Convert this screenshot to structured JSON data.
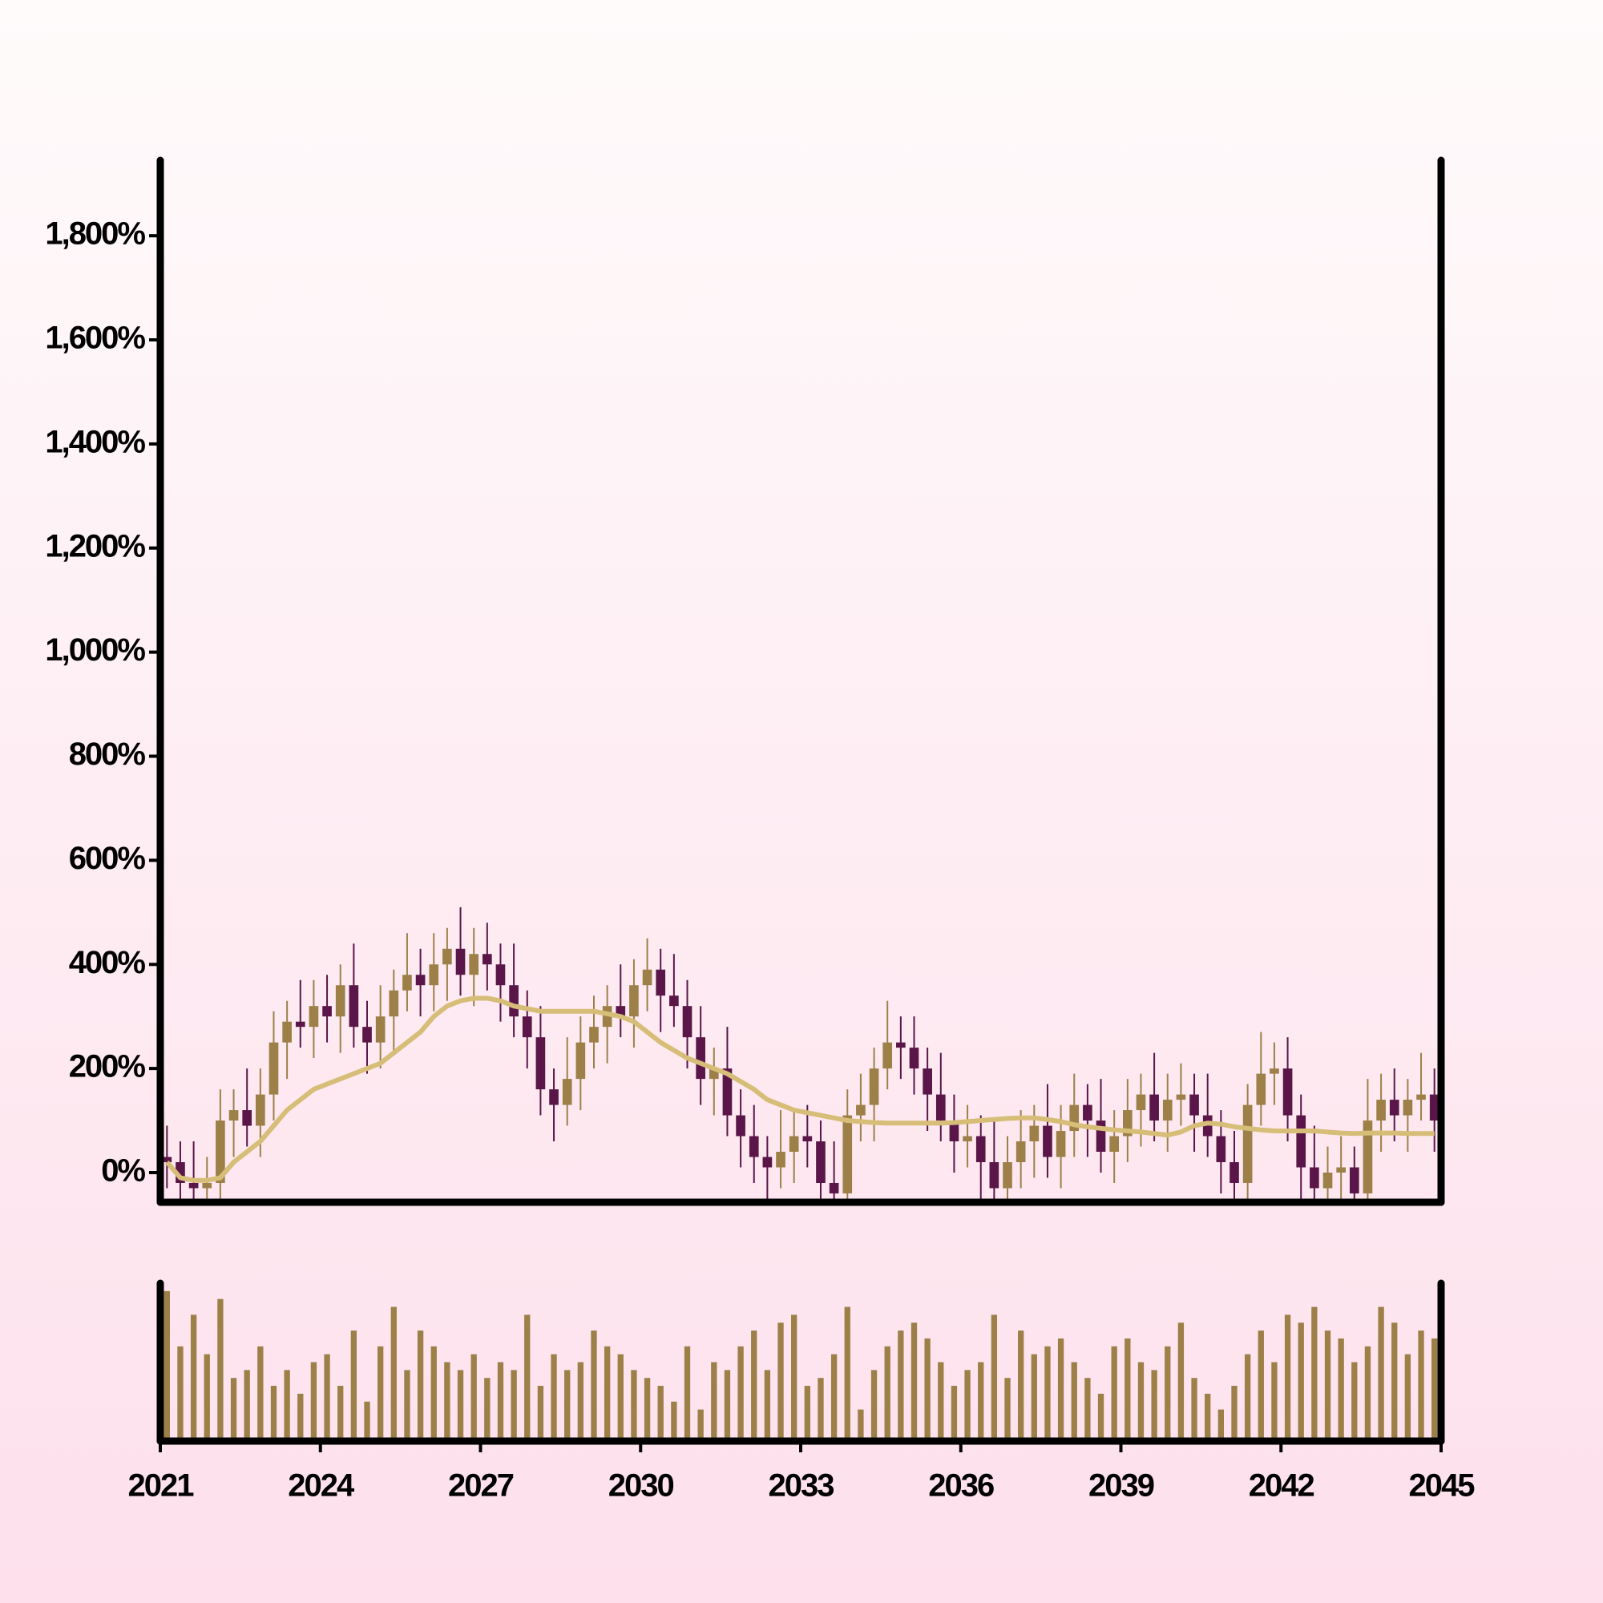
{
  "chart_data": {
    "type": "candlestick",
    "x": [
      2021,
      2021.25,
      2021.5,
      2021.75,
      2022,
      2022.25,
      2022.5,
      2022.75,
      2023,
      2023.25,
      2023.5,
      2023.75,
      2024,
      2024.25,
      2024.5,
      2024.75,
      2025,
      2025.25,
      2025.5,
      2025.75,
      2026,
      2026.25,
      2026.5,
      2026.75,
      2027,
      2027.25,
      2027.5,
      2027.75,
      2028,
      2028.25,
      2028.5,
      2028.75,
      2029,
      2029.25,
      2029.5,
      2029.75,
      2030,
      2030.25,
      2030.5,
      2030.75,
      2031,
      2031.25,
      2031.5,
      2031.75,
      2032,
      2032.25,
      2032.5,
      2032.75,
      2033,
      2033.25,
      2033.5,
      2033.75,
      2034,
      2034.25,
      2034.5,
      2034.75,
      2035,
      2035.25,
      2035.5,
      2035.75,
      2036,
      2036.25,
      2036.5,
      2036.75,
      2037,
      2037.25,
      2037.5,
      2037.75,
      2038,
      2038.25,
      2038.5,
      2038.75,
      2039,
      2039.25,
      2039.5,
      2039.75,
      2040,
      2040.25,
      2040.5,
      2040.75,
      2041,
      2041.25,
      2041.5,
      2041.75,
      2042,
      2042.25,
      2042.5,
      2042.75,
      2043,
      2043.25,
      2043.5,
      2043.75,
      2044,
      2044.25,
      2044.5,
      2044.75
    ],
    "open": [
      30,
      20,
      -20,
      -30,
      -20,
      100,
      120,
      90,
      150,
      250,
      290,
      280,
      320,
      300,
      360,
      280,
      250,
      300,
      350,
      380,
      360,
      400,
      430,
      380,
      420,
      400,
      360,
      300,
      260,
      160,
      130,
      180,
      250,
      280,
      320,
      300,
      360,
      390,
      340,
      320,
      260,
      180,
      200,
      110,
      70,
      30,
      10,
      40,
      70,
      60,
      -20,
      -40,
      110,
      130,
      200,
      250,
      240,
      200,
      150,
      100,
      60,
      70,
      20,
      -30,
      20,
      60,
      90,
      30,
      80,
      130,
      100,
      40,
      70,
      120,
      150,
      100,
      140,
      150,
      110,
      70,
      20,
      -20,
      130,
      190,
      200,
      110,
      10,
      -30,
      0,
      10,
      -40,
      100,
      140,
      110,
      140,
      150
    ],
    "high": [
      90,
      60,
      60,
      30,
      160,
      160,
      200,
      200,
      310,
      330,
      370,
      370,
      380,
      400,
      440,
      330,
      360,
      390,
      460,
      430,
      460,
      470,
      510,
      470,
      480,
      440,
      440,
      350,
      320,
      200,
      260,
      300,
      340,
      360,
      400,
      410,
      450,
      430,
      420,
      370,
      320,
      240,
      280,
      160,
      130,
      70,
      120,
      120,
      130,
      100,
      60,
      160,
      190,
      240,
      330,
      300,
      300,
      240,
      230,
      150,
      130,
      110,
      100,
      70,
      120,
      130,
      170,
      130,
      190,
      170,
      180,
      120,
      180,
      190,
      230,
      190,
      210,
      190,
      190,
      120,
      80,
      170,
      270,
      250,
      260,
      150,
      90,
      50,
      70,
      50,
      180,
      190,
      200,
      180,
      230,
      200
    ],
    "low": [
      -30,
      -90,
      -70,
      -90,
      -70,
      30,
      50,
      30,
      100,
      180,
      240,
      220,
      250,
      230,
      240,
      190,
      200,
      230,
      310,
      300,
      310,
      330,
      340,
      320,
      350,
      290,
      260,
      200,
      110,
      60,
      90,
      120,
      200,
      210,
      260,
      240,
      310,
      270,
      280,
      200,
      130,
      110,
      70,
      10,
      -20,
      -60,
      -30,
      -20,
      10,
      -90,
      -80,
      -100,
      60,
      60,
      160,
      180,
      150,
      80,
      60,
      0,
      10,
      -50,
      -70,
      -90,
      -30,
      -10,
      -10,
      -30,
      30,
      30,
      0,
      -20,
      20,
      50,
      60,
      40,
      90,
      40,
      30,
      -40,
      -70,
      -90,
      90,
      130,
      60,
      -60,
      -70,
      -90,
      -50,
      -110,
      -80,
      40,
      60,
      40,
      100,
      40
    ],
    "close": [
      20,
      -20,
      -30,
      -20,
      100,
      120,
      90,
      150,
      250,
      290,
      280,
      320,
      300,
      360,
      280,
      250,
      300,
      350,
      380,
      360,
      400,
      430,
      380,
      420,
      400,
      360,
      300,
      260,
      160,
      130,
      180,
      250,
      280,
      320,
      300,
      360,
      390,
      340,
      320,
      260,
      180,
      200,
      110,
      70,
      30,
      10,
      40,
      70,
      60,
      -20,
      -40,
      110,
      130,
      200,
      250,
      240,
      200,
      150,
      100,
      60,
      70,
      20,
      -30,
      20,
      60,
      90,
      30,
      80,
      130,
      100,
      40,
      70,
      120,
      150,
      100,
      140,
      150,
      110,
      70,
      20,
      -20,
      130,
      190,
      200,
      110,
      10,
      -30,
      0,
      10,
      -40,
      100,
      140,
      110,
      140,
      150,
      100
    ],
    "up_color": "#9c8048",
    "down_color": "#5a1648",
    "moving_average": {
      "color": "#d6bd78",
      "values": [
        20,
        -10,
        -15,
        -15,
        -10,
        20,
        40,
        60,
        90,
        120,
        140,
        160,
        170,
        180,
        190,
        200,
        210,
        230,
        250,
        270,
        300,
        320,
        330,
        335,
        335,
        330,
        320,
        315,
        310,
        310,
        310,
        310,
        310,
        305,
        300,
        290,
        270,
        250,
        235,
        220,
        210,
        200,
        190,
        175,
        160,
        140,
        130,
        120,
        115,
        110,
        105,
        100,
        98,
        96,
        95,
        95,
        95,
        95,
        95,
        96,
        98,
        100,
        102,
        104,
        105,
        105,
        102,
        98,
        92,
        88,
        85,
        82,
        80,
        78,
        75,
        72,
        78,
        90,
        95,
        93,
        88,
        85,
        82,
        80,
        80,
        80,
        80,
        78,
        76,
        75,
        76,
        76,
        76,
        75,
        75,
        75
      ]
    },
    "volume": {
      "color": "#9c8048",
      "ylim": [
        0,
        100
      ],
      "values": [
        95,
        60,
        80,
        55,
        90,
        40,
        45,
        60,
        35,
        45,
        30,
        50,
        55,
        35,
        70,
        25,
        60,
        85,
        45,
        70,
        60,
        50,
        45,
        55,
        40,
        50,
        45,
        80,
        35,
        55,
        45,
        50,
        70,
        60,
        55,
        45,
        40,
        35,
        25,
        60,
        20,
        50,
        45,
        60,
        70,
        45,
        75,
        80,
        35,
        40,
        55,
        85,
        20,
        45,
        60,
        70,
        75,
        65,
        50,
        35,
        45,
        50,
        80,
        40,
        70,
        55,
        60,
        65,
        50,
        40,
        30,
        60,
        65,
        50,
        45,
        60,
        75,
        40,
        30,
        20,
        35,
        55,
        70,
        50,
        80,
        75,
        85,
        70,
        65,
        50,
        60,
        85,
        75,
        55,
        70,
        65
      ]
    },
    "xlim": [
      2021,
      2045
    ],
    "xticks": [
      2021,
      2024,
      2027,
      2030,
      2033,
      2036,
      2039,
      2042,
      2045
    ],
    "ylim": [
      -57,
      1945
    ],
    "yticks": [
      {
        "value": 0,
        "label": "0%"
      },
      {
        "value": 200,
        "label": "200%"
      },
      {
        "value": 400,
        "label": "400%"
      },
      {
        "value": 600,
        "label": "600%"
      },
      {
        "value": 800,
        "label": "800%"
      },
      {
        "value": 1000,
        "label": "1,000%"
      },
      {
        "value": 1200,
        "label": "1,200%"
      },
      {
        "value": 1400,
        "label": "1,400%"
      },
      {
        "value": 1600,
        "label": "1,600%"
      },
      {
        "value": 1800,
        "label": "1,800%"
      }
    ]
  }
}
